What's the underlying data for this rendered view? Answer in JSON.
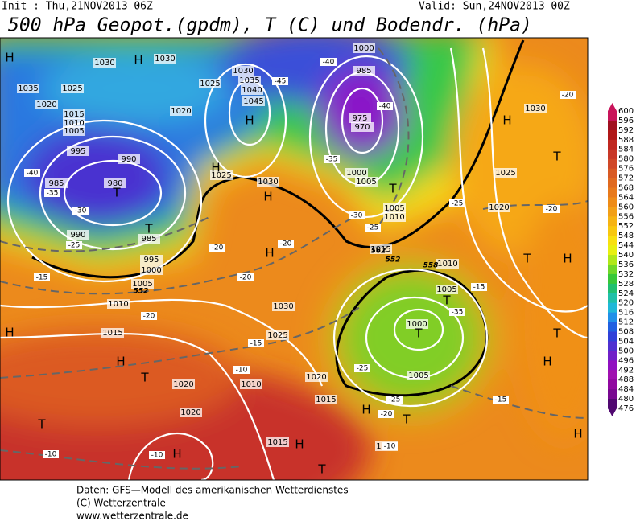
{
  "header": {
    "init": "Init : Thu,21NOV2013 06Z",
    "valid": "Valid: Sun,24NOV2013 00Z",
    "title": "500 hPa Geopot.(gpdm), T (C) und Bodendr. (hPa)"
  },
  "map_labels": [
    "1030",
    "H",
    "1030",
    "1035",
    "1025",
    "1020",
    "1015",
    "1010",
    "1005",
    "995",
    "990",
    "985",
    "980",
    "T",
    "T",
    "985",
    "990",
    "995",
    "1000",
    "1005",
    "1010",
    "1015",
    "H",
    "H",
    "T",
    "1020",
    "1020",
    "T",
    "H",
    "1015",
    "H",
    "T",
    "1030",
    "1025",
    "H",
    "H",
    "1030",
    "1025",
    "H",
    "1020",
    "1025",
    "1030",
    "1035",
    "1040",
    "1045",
    "H",
    "1000",
    "985",
    "975",
    "970",
    "1000",
    "1005",
    "T",
    "1005",
    "1010",
    "1015",
    "1010",
    "1005",
    "T",
    "1000",
    "T",
    "1005",
    "1020",
    "1015",
    "H",
    "T",
    "1010",
    "1020",
    "1025",
    "1030",
    "H",
    "T",
    "T",
    "H",
    "T",
    "H",
    "H",
    "H",
    "1010"
  ],
  "isotherm_labels": [
    "-40",
    "-35",
    "-30",
    "-25",
    "-15",
    "-20",
    "-15",
    "-10",
    "-10",
    "-10",
    "-20",
    "-20",
    "-20",
    "-25",
    "-30",
    "-40",
    "-45",
    "-40",
    "-35",
    "-25",
    "-20",
    "-15",
    "-20",
    "-25",
    "-20",
    "-10",
    "-35",
    "-25",
    "-15"
  ],
  "contour_labels": [
    "552",
    "552",
    "562",
    "558"
  ],
  "colorbar": {
    "labels": [
      600,
      596,
      592,
      588,
      584,
      580,
      576,
      572,
      568,
      564,
      560,
      556,
      552,
      548,
      544,
      540,
      536,
      532,
      528,
      524,
      520,
      516,
      512,
      508,
      504,
      500,
      496,
      492,
      488,
      484,
      480,
      476
    ],
    "colors": [
      "#c8145a",
      "#a01020",
      "#b01818",
      "#c02820",
      "#c83828",
      "#d04828",
      "#d85a24",
      "#e06a20",
      "#e87a1c",
      "#ee8c18",
      "#f2a018",
      "#f6b414",
      "#f8c810",
      "#f8e010",
      "#e8f010",
      "#b0e818",
      "#70d828",
      "#38c838",
      "#20c070",
      "#20c0a8",
      "#20b8d8",
      "#2090e8",
      "#2060e0",
      "#3040d8",
      "#5030d0",
      "#7020c8",
      "#9010c0",
      "#a010b0",
      "#9008a0",
      "#780890",
      "#500870"
    ]
  },
  "footer": [
    "Daten: GFS—Modell des amerikanischen Wetterdienstes",
    "(C) Wetterzentrale",
    "www.wetterzentrale.de"
  ]
}
